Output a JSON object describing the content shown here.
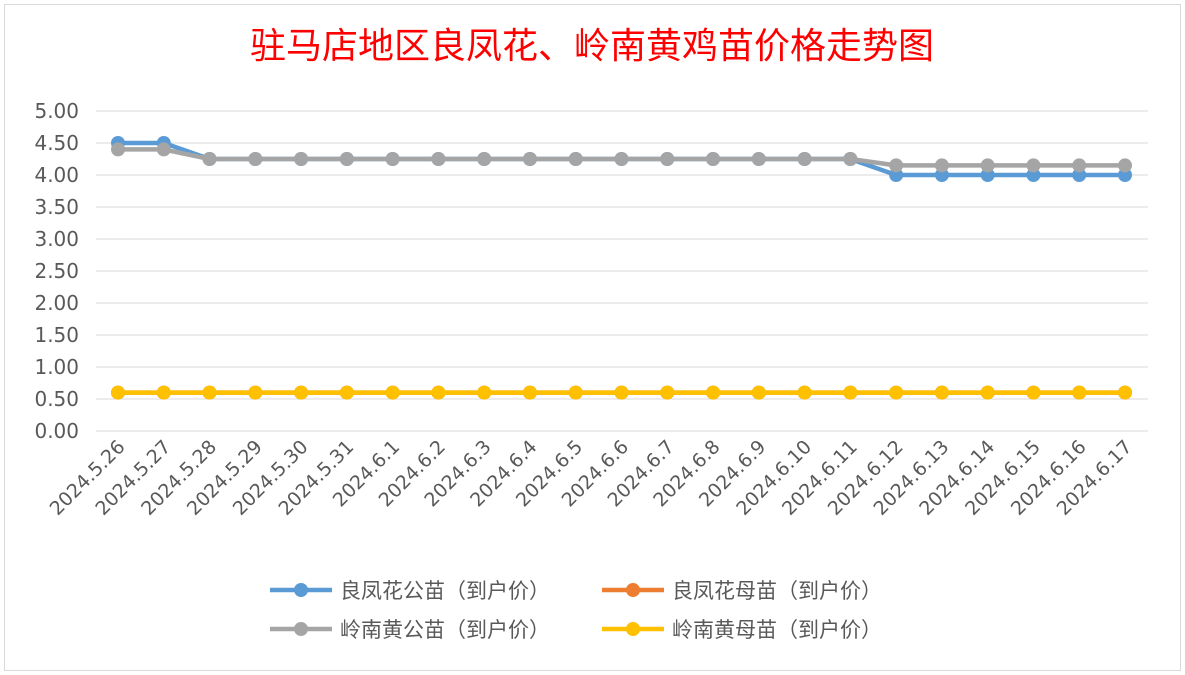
{
  "chart_data": {
    "type": "line",
    "title": "驻马店地区良凤花、岭南黄鸡苗价格走势图",
    "xlabel": "",
    "ylabel": "",
    "ylim": [
      0,
      5
    ],
    "y_ticks": [
      "0.00",
      "0.50",
      "1.00",
      "1.50",
      "2.00",
      "2.50",
      "3.00",
      "3.50",
      "4.00",
      "4.50",
      "5.00"
    ],
    "grid": true,
    "legend_position": "bottom",
    "categories": [
      "2024.5.26",
      "2024.5.27",
      "2024.5.28",
      "2024.5.29",
      "2024.5.30",
      "2024.5.31",
      "2024.6.1",
      "2024.6.2",
      "2024.6.3",
      "2024.6.4",
      "2024.6.5",
      "2024.6.6",
      "2024.6.7",
      "2024.6.8",
      "2024.6.9",
      "2024.6.10",
      "2024.6.11",
      "2024.6.12",
      "2024.6.13",
      "2024.6.14",
      "2024.6.15",
      "2024.6.16",
      "2024.6.17"
    ],
    "series": [
      {
        "name": "良凤花公苗（到户价）",
        "color": "#5B9BD5",
        "values": [
          4.5,
          4.5,
          4.25,
          4.25,
          4.25,
          4.25,
          4.25,
          4.25,
          4.25,
          4.25,
          4.25,
          4.25,
          4.25,
          4.25,
          4.25,
          4.25,
          4.25,
          4.0,
          4.0,
          4.0,
          4.0,
          4.0,
          4.0
        ]
      },
      {
        "name": "良凤花母苗（到户价）",
        "color": "#ED7D31",
        "values": [
          0.6,
          0.6,
          0.6,
          0.6,
          0.6,
          0.6,
          0.6,
          0.6,
          0.6,
          0.6,
          0.6,
          0.6,
          0.6,
          0.6,
          0.6,
          0.6,
          0.6,
          0.6,
          0.6,
          0.6,
          0.6,
          0.6,
          0.6
        ]
      },
      {
        "name": "岭南黄公苗（到户价）",
        "color": "#A5A5A5",
        "values": [
          4.4,
          4.4,
          4.25,
          4.25,
          4.25,
          4.25,
          4.25,
          4.25,
          4.25,
          4.25,
          4.25,
          4.25,
          4.25,
          4.25,
          4.25,
          4.25,
          4.25,
          4.15,
          4.15,
          4.15,
          4.15,
          4.15,
          4.15
        ]
      },
      {
        "name": "岭南黄母苗（到户价）",
        "color": "#FFC000",
        "values": [
          0.6,
          0.6,
          0.6,
          0.6,
          0.6,
          0.6,
          0.6,
          0.6,
          0.6,
          0.6,
          0.6,
          0.6,
          0.6,
          0.6,
          0.6,
          0.6,
          0.6,
          0.6,
          0.6,
          0.6,
          0.6,
          0.6,
          0.6
        ]
      }
    ],
    "title_color": "#FF0000",
    "grid_color": "#D9D9D9",
    "tick_label_color": "#595959"
  }
}
